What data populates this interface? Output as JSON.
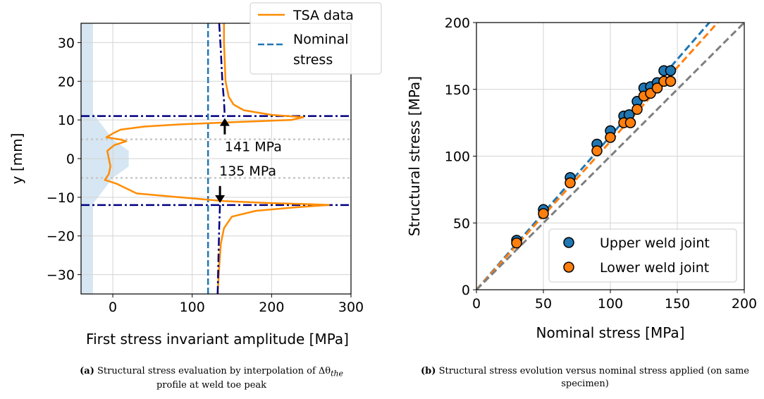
{
  "colors": {
    "tsa": "#ff8c00",
    "nominal": "#1f77b4",
    "navy": "#000080",
    "upper": "#1f77b4",
    "lower": "#ff7f0e",
    "reference": "#7f7f7f",
    "shade": "#d6e6f2",
    "grid": "#d3d3d3",
    "dotted": "#c8c8c8"
  },
  "captions": {
    "a_tag": "(a)",
    "a_text": "Structural stress evaluation by interpolation of Δθ",
    "a_sub": "the",
    "a_text2": "profile at weld toe peak",
    "b_tag": "(b)",
    "b_text": "Structural stress evolution versus nominal stress applied (on same specimen)"
  },
  "chart_data": [
    {
      "type": "line",
      "xlabel": "First stress invariant amplitude [MPa]",
      "ylabel": "y [mm]",
      "xlim": [
        -40,
        300
      ],
      "ylim": [
        -35,
        35
      ],
      "xticks": [
        0,
        100,
        200,
        300
      ],
      "yticks": [
        -30,
        -20,
        -10,
        0,
        10,
        20,
        30
      ],
      "grid": true,
      "legend": {
        "position": "top-right",
        "entries": [
          "TSA data",
          "Nominal\nstress"
        ]
      },
      "series": [
        {
          "name": "TSA data",
          "style": "solid",
          "points": [
            [
              140,
              35
            ],
            [
              140,
              30
            ],
            [
              141,
              25
            ],
            [
              142,
              20
            ],
            [
              146,
              16
            ],
            [
              152,
              14
            ],
            [
              165,
              12.5
            ],
            [
              200,
              11.3
            ],
            [
              240,
              10.7
            ],
            [
              225,
              10
            ],
            [
              150,
              9.4
            ],
            [
              80,
              8.8
            ],
            [
              40,
              8.3
            ],
            [
              10,
              7.5
            ],
            [
              0,
              6.5
            ],
            [
              -8,
              5.5
            ],
            [
              8,
              5
            ],
            [
              17,
              4.5
            ],
            [
              2,
              3.5
            ],
            [
              -7,
              2
            ],
            [
              -5,
              0
            ],
            [
              -3,
              -2
            ],
            [
              -5,
              -4
            ],
            [
              -10,
              -5.5
            ],
            [
              5,
              -6.5
            ],
            [
              30,
              -9
            ],
            [
              85,
              -10
            ],
            [
              140,
              -11
            ],
            [
              200,
              -11.5
            ],
            [
              250,
              -11.8
            ],
            [
              272,
              -12
            ],
            [
              230,
              -12.6
            ],
            [
              180,
              -13.5
            ],
            [
              150,
              -15
            ],
            [
              140,
              -18
            ],
            [
              136,
              -22
            ],
            [
              134,
              -28
            ],
            [
              132,
              -35
            ]
          ]
        },
        {
          "name": "Nominal\nstress",
          "style": "dashed",
          "points": [
            [
              120,
              -35
            ],
            [
              120,
              35
            ]
          ]
        }
      ],
      "fit_curves": [
        {
          "style": "dashdot",
          "points": [
            [
              134,
              35
            ],
            [
              136,
              28
            ],
            [
              138,
              20
            ],
            [
              140,
              15
            ],
            [
              141,
              11
            ]
          ]
        },
        {
          "style": "dashdot",
          "points": [
            [
              135,
              -12
            ],
            [
              134,
              -18
            ],
            [
              133,
              -26
            ],
            [
              132,
              -35
            ]
          ]
        }
      ],
      "horizontal_lines": [
        {
          "y": 11,
          "style": "dashdot"
        },
        {
          "y": -12,
          "style": "dashdot"
        },
        {
          "y": 5,
          "style": "dotted"
        },
        {
          "y": -5,
          "style": "dotted"
        }
      ],
      "shaded_region": [
        [
          -40,
          13
        ],
        [
          -30,
          13
        ],
        [
          -15,
          9
        ],
        [
          0,
          5
        ],
        [
          20,
          2
        ],
        [
          20,
          -2
        ],
        [
          0,
          -5
        ],
        [
          -15,
          -9
        ],
        [
          -30,
          -13
        ],
        [
          -40,
          -13
        ]
      ],
      "shaded_band": {
        "x_from": -40,
        "x_to": -25
      },
      "annotations": [
        {
          "text": "141 MPa",
          "arrow_at": [
            141,
            11
          ],
          "direction": "up"
        },
        {
          "text": "135 MPa",
          "arrow_at": [
            135,
            -12
          ],
          "direction": "down"
        }
      ]
    },
    {
      "type": "scatter",
      "xlabel": "Nominal stress [MPa]",
      "ylabel": "Structural stress [MPa]",
      "xlim": [
        0,
        200
      ],
      "ylim": [
        0,
        200
      ],
      "xticks": [
        0,
        50,
        100,
        150,
        200
      ],
      "yticks": [
        0,
        50,
        100,
        150,
        200
      ],
      "grid": true,
      "legend": {
        "position": "bottom-right"
      },
      "series": [
        {
          "name": "Upper weld joint",
          "points": [
            [
              30,
              37
            ],
            [
              50,
              60
            ],
            [
              70,
              84
            ],
            [
              90,
              109
            ],
            [
              100,
              119
            ],
            [
              110,
              130
            ],
            [
              114,
              131
            ],
            [
              120,
              141
            ],
            [
              125,
              151
            ],
            [
              130,
              152
            ],
            [
              135,
              155
            ],
            [
              140,
              164
            ],
            [
              145,
              164
            ]
          ]
        },
        {
          "name": "Lower weld joint",
          "points": [
            [
              30,
              35
            ],
            [
              50,
              57
            ],
            [
              70,
              80
            ],
            [
              90,
              104
            ],
            [
              100,
              114
            ],
            [
              110,
              125
            ],
            [
              115,
              125
            ],
            [
              120,
              135
            ],
            [
              125,
              145
            ],
            [
              130,
              147
            ],
            [
              135,
              151
            ],
            [
              140,
              156
            ],
            [
              145,
              156
            ]
          ]
        }
      ],
      "fit_lines": [
        {
          "series": "Upper weld joint",
          "slope": 1.15,
          "style": "dashed"
        },
        {
          "series": "Lower weld joint",
          "slope": 1.11,
          "style": "dashed"
        },
        {
          "series": "reference",
          "slope": 1.0,
          "style": "dashed"
        }
      ]
    }
  ]
}
